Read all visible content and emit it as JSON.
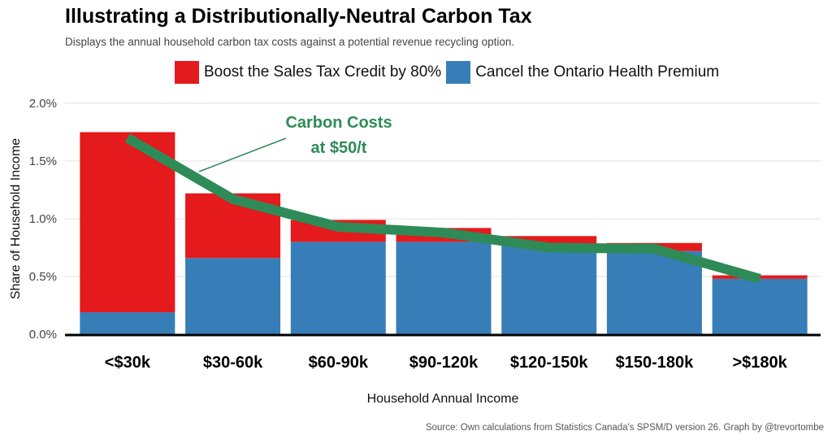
{
  "title": "Illustrating a Distributionally-Neutral Carbon Tax",
  "subtitle": "Displays the annual household carbon tax costs against a potential revenue recycling option.",
  "source": "Source: Own calculations from Statistics Canada's SPSM/D version 26. Graph by @trevortombe",
  "chart_data": {
    "type": "bar",
    "stacked": true,
    "xlabel": "Household Annual Income",
    "ylabel": "Share of Household Income",
    "ylim": [
      0,
      2.0
    ],
    "yticks": [
      "0.0%",
      "0.5%",
      "1.0%",
      "1.5%",
      "2.0%"
    ],
    "grid": true,
    "legend_position": "top",
    "categories": [
      "<$30k",
      "$30-60k",
      "$60-90k",
      "$90-120k",
      "$120-150k",
      "$150-180k",
      ">$180k"
    ],
    "series": [
      {
        "name": "Cancel the Ontario Health Premium",
        "color": "#377EB8",
        "values": [
          0.19,
          0.66,
          0.8,
          0.8,
          0.77,
          0.72,
          0.48
        ]
      },
      {
        "name": "Boost the Sales Tax Credit by 80%",
        "color": "#E41A1C",
        "values": [
          1.56,
          0.56,
          0.19,
          0.12,
          0.08,
          0.07,
          0.03
        ]
      }
    ],
    "line": {
      "label_line1": "Carbon Costs",
      "label_line2": "at $50/t",
      "color": "#2E8B57",
      "values": [
        1.7,
        1.17,
        0.93,
        0.88,
        0.75,
        0.74,
        0.48
      ]
    }
  }
}
